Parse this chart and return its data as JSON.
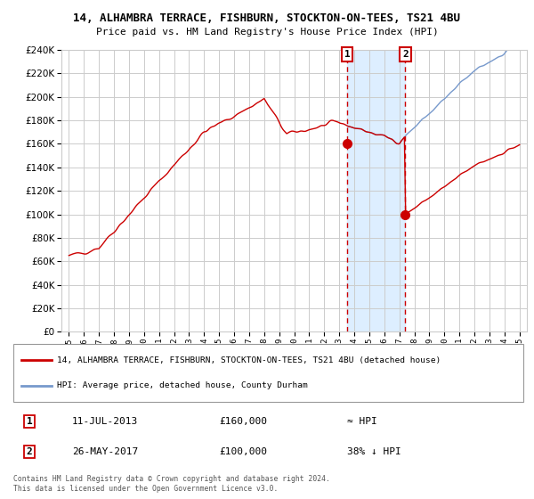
{
  "title_line1": "14, ALHAMBRA TERRACE, FISHBURN, STOCKTON-ON-TEES, TS21 4BU",
  "title_line2": "Price paid vs. HM Land Registry's House Price Index (HPI)",
  "legend_red": "14, ALHAMBRA TERRACE, FISHBURN, STOCKTON-ON-TEES, TS21 4BU (detached house)",
  "legend_blue": "HPI: Average price, detached house, County Durham",
  "annotation1_date": "11-JUL-2013",
  "annotation1_price": "£160,000",
  "annotation1_hpi": "≈ HPI",
  "annotation2_date": "26-MAY-2017",
  "annotation2_price": "£100,000",
  "annotation2_hpi": "38% ↓ HPI",
  "footer": "Contains HM Land Registry data © Crown copyright and database right 2024.\nThis data is licensed under the Open Government Licence v3.0.",
  "ylim": [
    0,
    240000
  ],
  "ytick_step": 20000,
  "sale1_year": 2013.53,
  "sale1_price": 160000,
  "sale2_year": 2017.4,
  "sale2_price": 100000,
  "bg_color": "#ffffff",
  "red_color": "#cc0000",
  "blue_color": "#7799cc",
  "shade_color": "#ddeeff",
  "grid_color": "#cccccc",
  "xlabel_years": [
    1995,
    1996,
    1997,
    1998,
    1999,
    2000,
    2001,
    2002,
    2003,
    2004,
    2005,
    2006,
    2007,
    2008,
    2009,
    2010,
    2011,
    2012,
    2013,
    2014,
    2015,
    2016,
    2017,
    2018,
    2019,
    2020,
    2021,
    2022,
    2023,
    2024,
    2025
  ]
}
